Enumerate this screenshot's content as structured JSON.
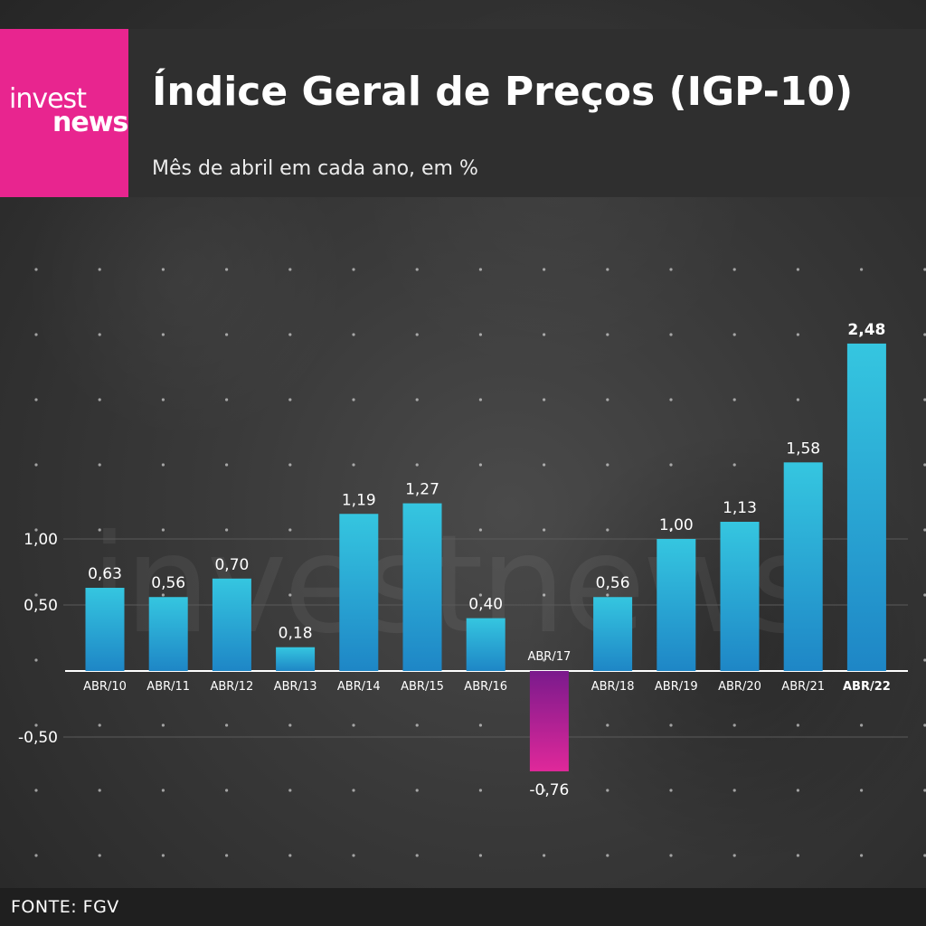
{
  "brand": {
    "logo_line1": "invest",
    "logo_line2": "news",
    "watermark": "investnews",
    "color": "#e8258f"
  },
  "header": {
    "title": "Índice Geral de Preços (IGP-10)",
    "subtitle": "Mês de abril em cada ano, em %"
  },
  "footer": {
    "source": "FONTE: FGV"
  },
  "chart_data": {
    "type": "bar",
    "title": "Índice Geral de Preços (IGP-10)",
    "subtitle": "Mês de abril em cada ano, em %",
    "xlabel": "",
    "ylabel": "",
    "categories": [
      "ABR/10",
      "ABR/11",
      "ABR/12",
      "ABR/13",
      "ABR/14",
      "ABR/15",
      "ABR/16",
      "ABR/17",
      "ABR/18",
      "ABR/19",
      "ABR/20",
      "ABR/21",
      "ABR/22"
    ],
    "values": [
      0.63,
      0.56,
      0.7,
      0.18,
      1.19,
      1.27,
      0.4,
      -0.76,
      0.56,
      1.0,
      1.13,
      1.58,
      2.48
    ],
    "value_labels": [
      "0,63",
      "0,56",
      "0,70",
      "0,18",
      "1,19",
      "1,27",
      "0,40",
      "-0,76",
      "0,56",
      "1,00",
      "1,13",
      "1,58",
      "2,48"
    ],
    "yticks": [
      -0.5,
      0.5,
      1.0
    ],
    "ytick_labels": [
      "-0,50",
      "0,50",
      "1,00"
    ],
    "ylim": [
      -0.76,
      2.48
    ],
    "grid": true,
    "legend": "none",
    "highlight_category": "ABR/22",
    "colors": {
      "positive_top": "#35c6e0",
      "positive_bottom": "#1e86c6",
      "negative_top": "#7a1a8c",
      "negative_bottom": "#e0289a",
      "baseline": "#ffffff",
      "grid": "#5a5a5a"
    }
  }
}
